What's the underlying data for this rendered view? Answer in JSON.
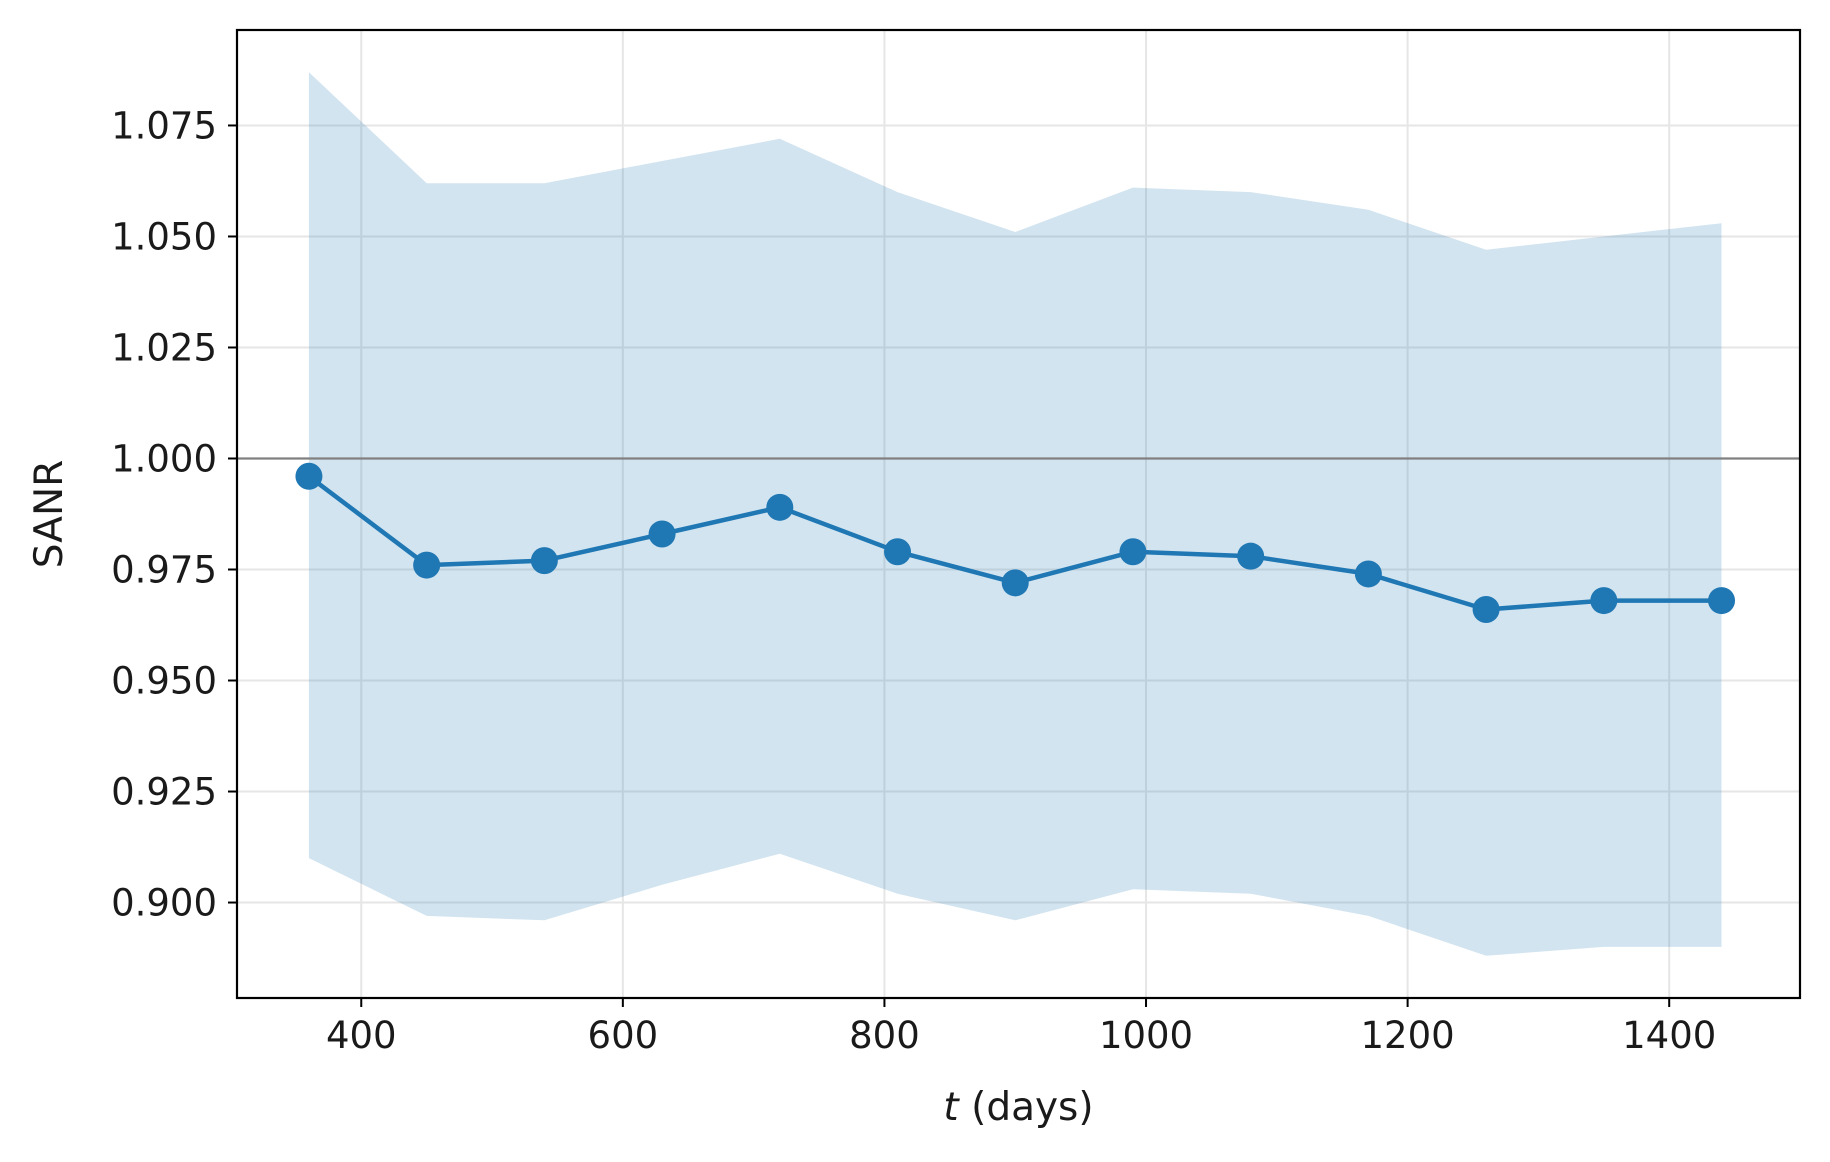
{
  "chart_data": {
    "type": "line",
    "xlabel_var": "t",
    "xlabel_rest": " (days)",
    "ylabel": "SANR",
    "xlim": [
      305,
      1500
    ],
    "ylim": [
      0.8785,
      1.0965
    ],
    "xticks": [
      400,
      600,
      800,
      1000,
      1200,
      1400
    ],
    "yticks": [
      0.9,
      0.925,
      0.95,
      0.975,
      1.0,
      1.025,
      1.05,
      1.075
    ],
    "ytick_labels": [
      "0.900",
      "0.925",
      "0.950",
      "0.975",
      "1.000",
      "1.025",
      "1.050",
      "1.075"
    ],
    "grid": true,
    "reference_line": 1.0,
    "series": [
      {
        "x": [
          360,
          450,
          540,
          630,
          720,
          810,
          900,
          990,
          1080,
          1170,
          1260,
          1350,
          1440
        ],
        "values": [
          0.996,
          0.976,
          0.977,
          0.983,
          0.989,
          0.979,
          0.972,
          0.979,
          0.978,
          0.974,
          0.966,
          0.968,
          0.968
        ],
        "upper": [
          1.087,
          1.062,
          1.062,
          1.067,
          1.072,
          1.06,
          1.051,
          1.061,
          1.06,
          1.056,
          1.047,
          1.05,
          1.053
        ],
        "lower": [
          0.91,
          0.897,
          0.896,
          0.904,
          0.911,
          0.902,
          0.896,
          0.903,
          0.902,
          0.897,
          0.888,
          0.89,
          0.89
        ]
      }
    ],
    "colors": {
      "line": "#1f77b4",
      "band": "#1f77b4",
      "reference": "#808080",
      "grid": "#e6e6e6",
      "axes": "#000000"
    }
  }
}
